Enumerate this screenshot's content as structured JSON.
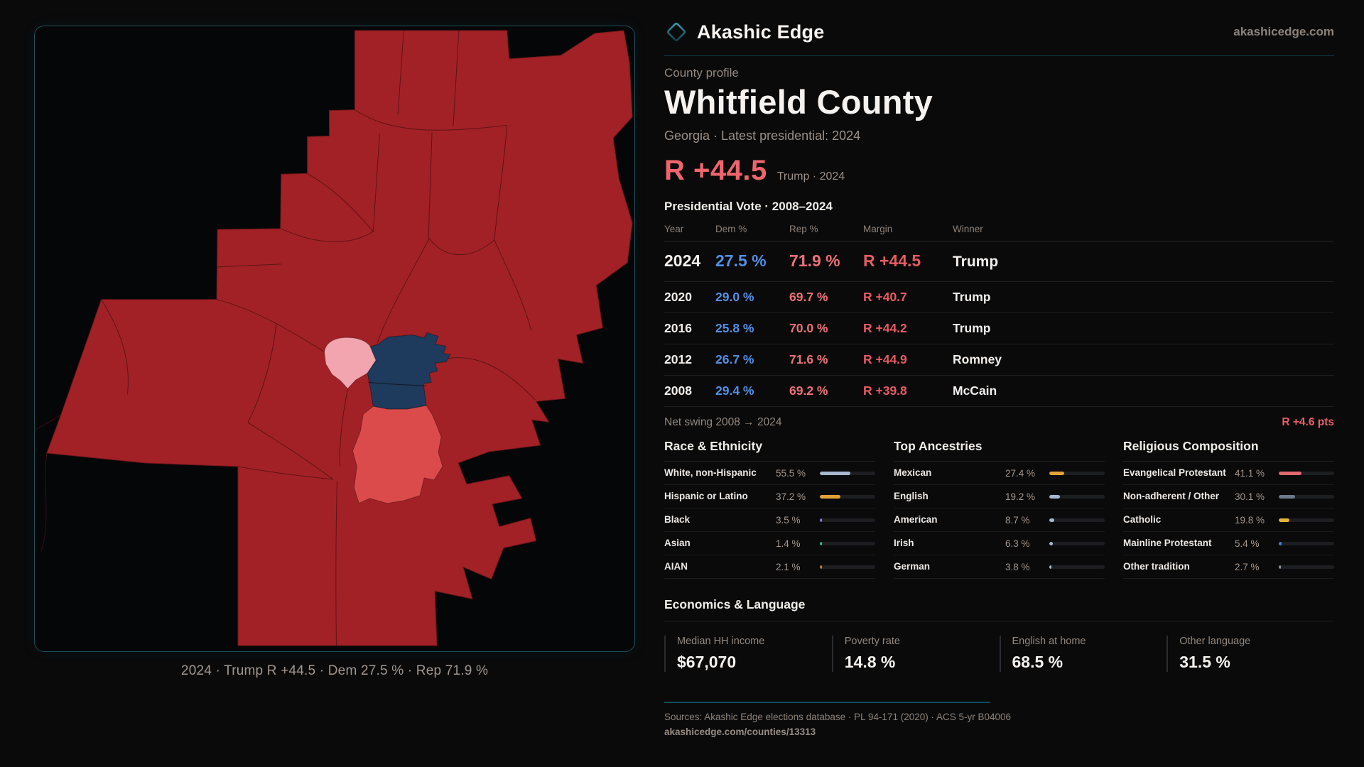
{
  "brand": {
    "name": "Akashic Edge",
    "domain": "akashicedge.com"
  },
  "profile": {
    "eyebrow": "County profile",
    "title": "Whitfield County",
    "subtitle": "Georgia · Latest presidential: 2024"
  },
  "headline": {
    "value": "R +44.5",
    "note": "Trump · 2024"
  },
  "vote_table": {
    "title": "Presidential Vote · 2008–2024",
    "columns": [
      "Year",
      "Dem %",
      "Rep %",
      "Margin",
      "Winner"
    ],
    "rows": [
      {
        "year": "2024",
        "dem": "27.5 %",
        "rep": "71.9 %",
        "margin": "R +44.5",
        "winner": "Trump",
        "featured": true
      },
      {
        "year": "2020",
        "dem": "29.0 %",
        "rep": "69.7 %",
        "margin": "R +40.7",
        "winner": "Trump"
      },
      {
        "year": "2016",
        "dem": "25.8 %",
        "rep": "70.0 %",
        "margin": "R +44.2",
        "winner": "Trump"
      },
      {
        "year": "2012",
        "dem": "26.7 %",
        "rep": "71.6 %",
        "margin": "R +44.9",
        "winner": "Romney"
      },
      {
        "year": "2008",
        "dem": "29.4 %",
        "rep": "69.2 %",
        "margin": "R +39.8",
        "winner": "McCain"
      }
    ]
  },
  "net_swing": {
    "label": "Net swing 2008 → 2024",
    "value": "R +4.6 pts"
  },
  "demographics": {
    "race": {
      "title": "Race & Ethnicity",
      "rows": [
        {
          "label": "White, non-Hispanic",
          "value": "55.5 %",
          "pct": 55.5,
          "color": "#a9b7cf"
        },
        {
          "label": "Hispanic or Latino",
          "value": "37.2 %",
          "pct": 37.2,
          "color": "#e3a238"
        },
        {
          "label": "Black",
          "value": "3.5 %",
          "pct": 3.5,
          "color": "#8f7ae8"
        },
        {
          "label": "Asian",
          "value": "1.4 %",
          "pct": 1.4,
          "color": "#35c08e"
        },
        {
          "label": "AIAN",
          "value": "2.1 %",
          "pct": 2.1,
          "color": "#cf7a2c"
        }
      ]
    },
    "ancestries": {
      "title": "Top Ancestries",
      "rows": [
        {
          "label": "Mexican",
          "value": "27.4 %",
          "pct": 27.4,
          "color": "#e3a238"
        },
        {
          "label": "English",
          "value": "19.2 %",
          "pct": 19.2,
          "color": "#a9b7cf"
        },
        {
          "label": "American",
          "value": "8.7 %",
          "pct": 8.7,
          "color": "#a9b7cf"
        },
        {
          "label": "Irish",
          "value": "6.3 %",
          "pct": 6.3,
          "color": "#a9b7cf"
        },
        {
          "label": "German",
          "value": "3.8 %",
          "pct": 3.8,
          "color": "#a9b7cf"
        }
      ]
    },
    "religion": {
      "title": "Religious Composition",
      "rows": [
        {
          "label": "Evangelical Protestant",
          "value": "41.1 %",
          "pct": 41.1,
          "color": "#e2696e"
        },
        {
          "label": "Non-adherent / Other",
          "value": "30.1 %",
          "pct": 30.1,
          "color": "#6d7a8e"
        },
        {
          "label": "Catholic",
          "value": "19.8 %",
          "pct": 19.8,
          "color": "#e5b33c"
        },
        {
          "label": "Mainline Protestant",
          "value": "5.4 %",
          "pct": 5.4,
          "color": "#3b80e8"
        },
        {
          "label": "Other tradition",
          "value": "2.7 %",
          "pct": 2.7,
          "color": "#8a93a0"
        }
      ]
    }
  },
  "economics": {
    "title": "Economics & Language",
    "stats": [
      {
        "label": "Median HH income",
        "value": "$67,070"
      },
      {
        "label": "Poverty rate",
        "value": "14.8 %"
      },
      {
        "label": "English at home",
        "value": "68.5 %"
      },
      {
        "label": "Other language",
        "value": "31.5 %"
      }
    ]
  },
  "map": {
    "caption": "2024 · Trump R +44.5 · Dem 27.5 % · Rep 71.9 %"
  },
  "footer": {
    "sources": "Sources: Akashic Edge elections database · PL 94-171 (2020) · ACS 5-yr B04006",
    "permalink": "akashicedge.com/counties/13313"
  },
  "colors": {
    "accent_teal": "#1b515b",
    "dem_blue": "#5290e4",
    "rep_red": "#ed7178",
    "margin_red": "#e85b63",
    "headline_red": "#ee656e",
    "map_base_red": "#a22126",
    "map_bright_red": "#dc4b4b",
    "map_pink": "#f3a5af",
    "map_navy": "#1e3a5c"
  }
}
